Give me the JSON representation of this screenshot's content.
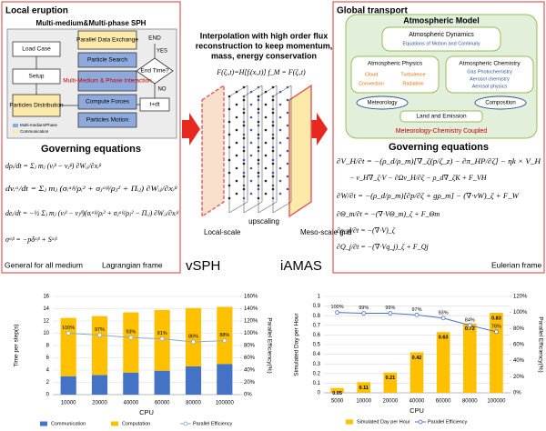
{
  "left_panel": {
    "title": "Local eruption",
    "subtitle": "Multi-medium&Multi-phase SPH",
    "flowchart": {
      "nodes": [
        "Load Case",
        "Setup",
        "Particles Distribution",
        "Parallel Data Exchange",
        "Particle Search",
        "Multi-Medium & Phase Interaction",
        "Compute Forces",
        "Particles Motion",
        "End Time?",
        "t+dt",
        "END"
      ],
      "yes": "YES",
      "no": "NO",
      "legend": [
        "Multi-medium/Phase",
        "Communication"
      ]
    },
    "heading": "Governing equations",
    "equations": [
      "dρᵢ/dt = Σⱼ mⱼ (vᵢᵝ − vⱼᵝ) ∂Wᵢⱼ/∂xᵢᵝ",
      "dvᵢᵅ/dt = Σⱼ mⱼ (σᵢᵅᵝ/ρᵢ² + σⱼᵅᵝ/ρⱼ² + Πᵢⱼ) ∂Wᵢⱼ/∂xᵢᵝ",
      "deᵢ/dt = −½ Σⱼ mⱼ (vᵢᵝ − vⱼᵝ)(σᵢᵅᵝ/ρᵢ² + σⱼᵅᵝ/ρⱼ² − Πᵢⱼ) ∂Wᵢⱼ/∂xᵢᵝ",
      "σᵅᵝ = −pδᵅᵝ + Sᵅᵝ"
    ],
    "footer_left": "General for all medium",
    "footer_right": "Lagrangian frame",
    "method": "vSPH"
  },
  "middle_panel": {
    "caption": [
      "Interpolation with high order flux",
      "reconstruction to keep  momentum,",
      "mass, energy conservation"
    ],
    "formula": "F(ζᵢ,t)=H[fᵢ(xᵢ,t)]   f_M = F(ζᵢ,t)",
    "labels": [
      "Local-scale",
      "upscaling",
      "Meso-scale grid"
    ],
    "method": "iAMAS"
  },
  "right_panel": {
    "title": "Global transport",
    "model": {
      "title": "Atmospheric Model",
      "dynamics": "Atmospheric Dynamics",
      "dynamics_note": "Equations of Motion and Continuity",
      "physics": "Atmospheric Physics",
      "physics_items": [
        "Cloud",
        "Turbulence",
        "Convection",
        "Radiation"
      ],
      "chemistry": "Atmospheric Chemistry",
      "chemistry_items": [
        "Gas Photochemistry",
        "Aerosol chemistry",
        "Aerosol physics"
      ],
      "meteorology": "Meteorology",
      "composition": "Composition",
      "land": "Land and Emission",
      "coupled": "Meteorology-Chemistry Coupled"
    },
    "heading": "Governing equations",
    "equations": [
      "∂V_H/∂t = −(ρ_d/ρ_m)[∇_ζ(p/ζ_z) − ∂π_HP/∂ζ] − ηk × V_H",
      "− v_H∇_ζ·V − ∂Ωv_H/∂ζ − ρ_d∇_ζK + F_VH",
      "∂W/∂t = −(ρ_d/ρ_m)[∂p/∂ζ + gρ_m] − (∇·vW)_ζ + F_W",
      "∂Θ_m/∂t = −(∇·VΘ_m)_ζ + F_Θm",
      "∂ρ_d/∂t = −(∇·V)_ζ",
      "∂Q_j/∂t = −(∇·Vq_j)_ζ + F_Qj"
    ],
    "footer": "Eulerian frame"
  },
  "chart_data": [
    {
      "type": "bar",
      "stacked": true,
      "grid": true,
      "legend": "bottom",
      "xlabel": "CPU",
      "ylabel": "Time per step(s)",
      "y2label": "Parallel Efficiency(%)",
      "categories": [
        "10000",
        "20000",
        "40000",
        "60000",
        "80000",
        "100000"
      ],
      "ylim": [
        0,
        16
      ],
      "yticks": [
        0,
        2,
        4,
        6,
        8,
        10,
        12,
        14,
        16
      ],
      "y2lim": [
        0,
        160
      ],
      "y2ticks": [
        {
          "value": 0,
          "label": "0%"
        },
        {
          "value": 20,
          "label": "20%"
        },
        {
          "value": 40,
          "label": "40%"
        },
        {
          "value": 60,
          "label": "60%"
        },
        {
          "value": 80,
          "label": "80%"
        },
        {
          "value": 100,
          "label": "100%"
        },
        {
          "value": 120,
          "label": "120%"
        },
        {
          "value": 140,
          "label": "140%"
        },
        {
          "value": 160,
          "label": "160%"
        }
      ],
      "series": [
        {
          "name": "Communication",
          "type": "bar",
          "color": "#4472c4",
          "values": [
            3.0,
            3.2,
            3.6,
            3.9,
            4.6,
            5.0
          ]
        },
        {
          "name": "Computation",
          "type": "bar",
          "color": "#ffc000",
          "values": [
            9.5,
            9.6,
            9.8,
            9.9,
            9.5,
            9.3
          ]
        },
        {
          "name": "Parallel Efficiency",
          "type": "line",
          "axis": "y2",
          "color": "#8ea9c8",
          "values": [
            100,
            97,
            93,
            91,
            86,
            88
          ],
          "value_labels": [
            "100%",
            "97%",
            "93%",
            "91%",
            "86%",
            "88%"
          ]
        }
      ]
    },
    {
      "type": "bar",
      "stacked": false,
      "grid": true,
      "legend": "bottom",
      "xlabel": "CPU",
      "ylabel": "Simulated Day per Hour",
      "y2label": "Parallel Efficiency(%)",
      "categories": [
        "5000",
        "10000",
        "20000",
        "40000",
        "60000",
        "80000",
        "100000"
      ],
      "ylim": [
        0,
        1
      ],
      "yticks": [
        0,
        0.1,
        0.2,
        0.3,
        0.4,
        0.5,
        0.6,
        0.7,
        0.8,
        0.9,
        1
      ],
      "y2lim": [
        0,
        120
      ],
      "y2ticks": [
        {
          "value": 0,
          "label": "0%"
        },
        {
          "value": 20,
          "label": "20%"
        },
        {
          "value": 40,
          "label": "40%"
        },
        {
          "value": 60,
          "label": "60%"
        },
        {
          "value": 80,
          "label": "80%"
        },
        {
          "value": 100,
          "label": "100%"
        },
        {
          "value": 120,
          "label": "120%"
        }
      ],
      "series": [
        {
          "name": "Simulated Day per Hour",
          "type": "bar",
          "color": "#ffc000",
          "data_labels": true,
          "values": [
            0.05,
            0.11,
            0.21,
            0.42,
            0.63,
            0.72,
            0.83
          ]
        },
        {
          "name": "Parallel Efficiency",
          "type": "line",
          "axis": "y2",
          "color": "#4a72c4",
          "values": [
            100,
            99,
            99,
            97,
            93,
            84,
            76
          ],
          "value_labels": [
            "100%",
            "99%",
            "99%",
            "97%",
            "93%",
            "84%",
            "76%"
          ]
        }
      ]
    }
  ]
}
